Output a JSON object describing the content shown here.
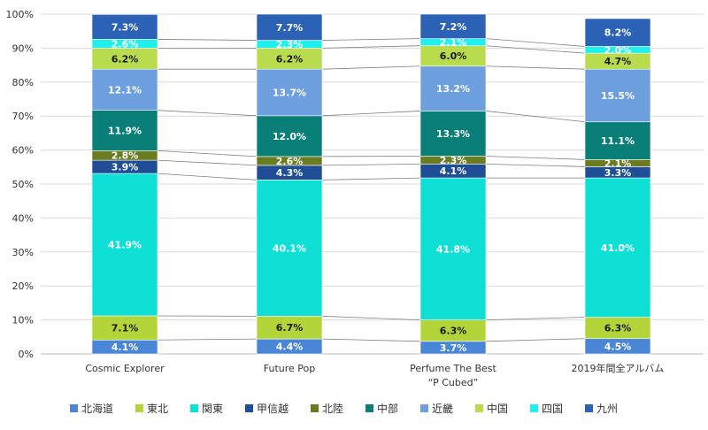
{
  "chart_data": {
    "type": "bar",
    "stacked": "percent",
    "categories": [
      "Cosmic Explorer",
      "Future Pop",
      "Perfume The Best\n“P Cubed”",
      "2019年間全アルバム"
    ],
    "ylim": [
      0,
      100
    ],
    "yticks": [
      "0%",
      "10%",
      "20%",
      "30%",
      "40%",
      "50%",
      "60%",
      "70%",
      "80%",
      "90%",
      "100%"
    ],
    "grid": true,
    "legend_position": "bottom",
    "series": [
      {
        "name": "北海道",
        "color": "#4A86D8",
        "label_color": "#ffffff",
        "values": [
          4.1,
          4.4,
          3.7,
          4.5
        ],
        "labels": [
          "4.1%",
          "4.4%",
          "3.7%",
          "4.5%"
        ]
      },
      {
        "name": "東北",
        "color": "#B3D53A",
        "label_color": "#1a1a1a",
        "values": [
          7.1,
          6.7,
          6.3,
          6.3
        ],
        "labels": [
          "7.1%",
          "6.7%",
          "6.3%",
          "6.3%"
        ]
      },
      {
        "name": "関東",
        "color": "#0FE0D6",
        "label_color": "#ffffff",
        "values": [
          41.9,
          40.1,
          41.8,
          41.0
        ],
        "labels": [
          "41.9%",
          "40.1%",
          "41.8%",
          "41.0%"
        ]
      },
      {
        "name": "甲信越",
        "color": "#1F4E96",
        "label_color": "#ffffff",
        "values": [
          3.9,
          4.3,
          4.1,
          3.3
        ],
        "labels": [
          "3.9%",
          "4.3%",
          "4.1%",
          "3.3%"
        ]
      },
      {
        "name": "北陸",
        "color": "#6B7B1F",
        "label_color": "#ffffff",
        "values": [
          2.8,
          2.6,
          2.3,
          2.1
        ],
        "labels": [
          "2.8%",
          "2.6%",
          "2.3%",
          "2.1%"
        ]
      },
      {
        "name": "中部",
        "color": "#0A7F78",
        "label_color": "#ffffff",
        "values": [
          11.9,
          12.0,
          13.3,
          11.1
        ],
        "labels": [
          "11.9%",
          "12.0%",
          "13.3%",
          "11.1%"
        ]
      },
      {
        "name": "近畿",
        "color": "#6E9FDF",
        "label_color": "#ffffff",
        "values": [
          12.1,
          13.7,
          13.2,
          15.5
        ],
        "labels": [
          "12.1%",
          "13.7%",
          "13.2%",
          "15.5%"
        ]
      },
      {
        "name": "中国",
        "color": "#B8DC4E",
        "label_color": "#1a1a1a",
        "values": [
          6.2,
          6.2,
          6.0,
          4.7
        ],
        "labels": [
          "6.2%",
          "6.2%",
          "6.0%",
          "4.7%"
        ]
      },
      {
        "name": "四国",
        "color": "#1FF0EE",
        "label_color": "#ffffff",
        "values": [
          2.6,
          2.3,
          2.1,
          2.0
        ],
        "labels": [
          "2.6%",
          "2.3%",
          "2.1%",
          "2.0%"
        ]
      },
      {
        "name": "九州",
        "color": "#2B62B5",
        "label_color": "#ffffff",
        "values": [
          7.3,
          7.7,
          7.2,
          8.2
        ],
        "labels": [
          "7.3%",
          "7.7%",
          "7.2%",
          "8.2%"
        ]
      }
    ]
  }
}
